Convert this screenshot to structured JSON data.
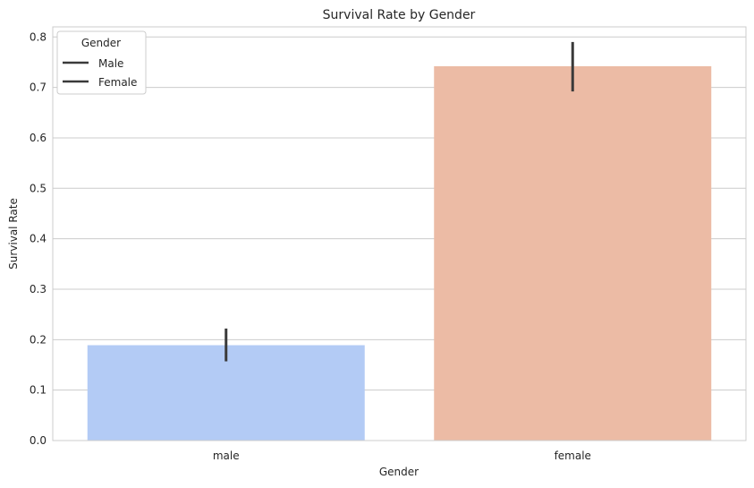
{
  "chart_data": {
    "type": "bar",
    "title": "Survival Rate by Gender",
    "xlabel": "Gender",
    "ylabel": "Survival Rate",
    "categories": [
      "male",
      "female"
    ],
    "values": [
      0.189,
      0.742
    ],
    "error_bars": [
      [
        0.157,
        0.222
      ],
      [
        0.692,
        0.79
      ]
    ],
    "colors": [
      "#b3cbf5",
      "#ecbba5"
    ],
    "error_bar_color": "#3a3a3a",
    "ylim": [
      0,
      0.82
    ],
    "yticks": [
      0.0,
      0.1,
      0.2,
      0.3,
      0.4,
      0.5,
      0.6,
      0.7,
      0.8
    ],
    "ytick_labels": [
      "0.0",
      "0.1",
      "0.2",
      "0.3",
      "0.4",
      "0.5",
      "0.6",
      "0.7",
      "0.8"
    ],
    "grid": "horizontal",
    "legend": {
      "title": "Gender",
      "placement": "top-left",
      "entries": [
        "Male",
        "Female"
      ],
      "line_color": "#3a3a3a"
    }
  }
}
